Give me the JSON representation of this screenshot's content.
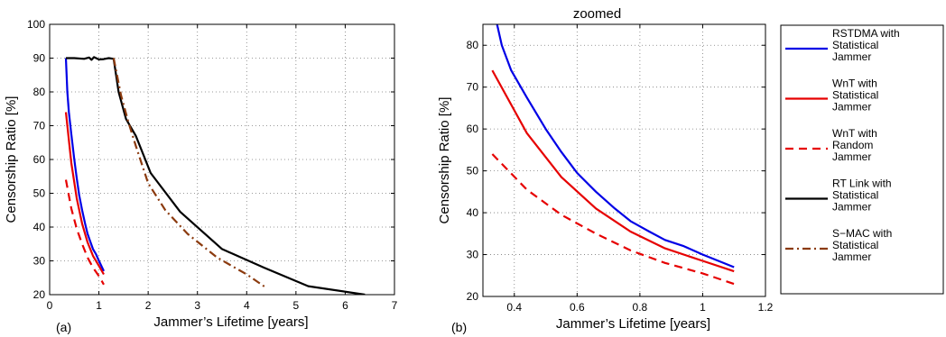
{
  "chart_data": [
    {
      "type": "line",
      "panel": "(a)",
      "title": "",
      "xlabel": "Jammer’s Lifetime [years]",
      "ylabel": "Censorship Ratio [%]",
      "xlim": [
        0,
        7
      ],
      "ylim": [
        20,
        100
      ],
      "xticks": [
        0,
        1,
        2,
        3,
        4,
        5,
        6,
        7
      ],
      "yticks": [
        20,
        30,
        40,
        50,
        60,
        70,
        80,
        90,
        100
      ],
      "grid": true,
      "series": [
        {
          "name": "RSTDMA with Statistical Jammer",
          "color": "#0000e6",
          "dash": "solid",
          "x": [
            0.33,
            0.36,
            0.39,
            0.44,
            0.5,
            0.55,
            0.6,
            0.66,
            0.72,
            0.77,
            0.83,
            0.88,
            0.94,
            1.0,
            1.05,
            1.1
          ],
          "y": [
            90,
            80,
            74,
            67.5,
            60,
            54.5,
            49.5,
            45,
            41,
            38,
            35.5,
            33.5,
            32,
            30,
            28.5,
            27
          ]
        },
        {
          "name": "WnT with Statistical Jammer",
          "color": "#e60000",
          "dash": "solid",
          "x": [
            0.33,
            0.44,
            0.55,
            0.66,
            0.77,
            0.88,
            1.0,
            1.1
          ],
          "y": [
            74,
            59,
            48.5,
            41,
            35.5,
            31.5,
            28.5,
            26
          ]
        },
        {
          "name": "WnT with Random Jammer",
          "color": "#e60000",
          "dash": "dashed",
          "x": [
            0.33,
            0.44,
            0.55,
            0.66,
            0.77,
            0.88,
            1.0,
            1.1
          ],
          "y": [
            54,
            45.5,
            39.5,
            35,
            31,
            28,
            25.5,
            23
          ]
        },
        {
          "name": "RT Link with Statistical Jammer",
          "color": "#000000",
          "dash": "solid",
          "x": [
            0.33,
            0.5,
            0.7,
            0.8,
            0.85,
            0.9,
            1.0,
            1.1,
            1.2,
            1.3,
            1.4,
            1.55,
            1.75,
            2.05,
            2.65,
            3.5,
            4.35,
            5.25,
            6.4
          ],
          "y": [
            90,
            90,
            89.8,
            90.2,
            89.5,
            90.3,
            89.6,
            89.7,
            90,
            89.8,
            80,
            72,
            67,
            56,
            44.5,
            33.5,
            28,
            22.5,
            20
          ]
        },
        {
          "name": "S−MAC with Statistical Jammer",
          "color": "#8b3a0e",
          "dash": "dashdot",
          "x": [
            1.3,
            1.45,
            1.6,
            1.75,
            2.0,
            2.35,
            2.8,
            3.4,
            4.0,
            4.4
          ],
          "y": [
            90,
            79,
            71,
            64,
            53,
            45,
            38,
            31,
            26,
            22
          ]
        }
      ]
    },
    {
      "type": "line",
      "panel": "(b)",
      "title": "zoomed",
      "xlabel": "Jammer’s Lifetime [years]",
      "ylabel": "Censorship Ratio [%]",
      "xlim": [
        0.3,
        1.2
      ],
      "ylim": [
        20,
        85
      ],
      "xticks": [
        0.4,
        0.6,
        0.8,
        1,
        1.2
      ],
      "xtick_labels": [
        "0.4",
        "0.6",
        "0.8",
        "1",
        "1.2"
      ],
      "yticks": [
        20,
        30,
        40,
        50,
        60,
        70,
        80
      ],
      "grid": true,
      "legend": "outside-right",
      "series_ref": [
        0,
        1,
        2,
        3,
        4
      ]
    }
  ],
  "legend": {
    "entries": [
      {
        "lines": [
          "RSTDMA with",
          "Statistical",
          "Jammer"
        ],
        "color": "#0000e6",
        "dash": "solid"
      },
      {
        "lines": [
          "WnT with",
          "Statistical",
          "Jammer"
        ],
        "color": "#e60000",
        "dash": "solid"
      },
      {
        "lines": [
          "WnT with",
          "Random",
          "Jammer"
        ],
        "color": "#e60000",
        "dash": "dashed"
      },
      {
        "lines": [
          "RT Link with",
          "Statistical",
          "Jammer"
        ],
        "color": "#000000",
        "dash": "solid"
      },
      {
        "lines": [
          "S−MAC with",
          "Statistical",
          "Jammer"
        ],
        "color": "#8b3a0e",
        "dash": "dashdot"
      }
    ]
  }
}
